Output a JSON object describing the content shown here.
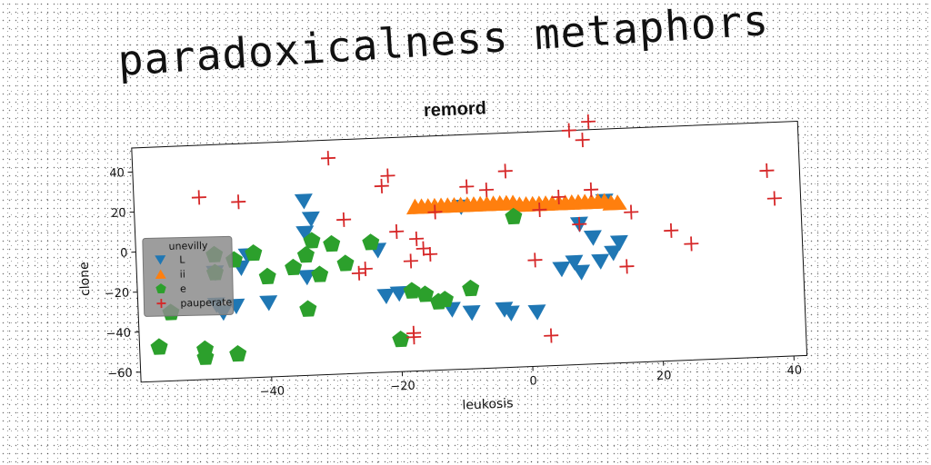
{
  "super_title": "paradoxicalness metaphors",
  "chart_data": {
    "type": "scatter",
    "title": "remord",
    "xlabel": "leukosis",
    "ylabel": "clone",
    "xlim": [
      -60,
      42
    ],
    "ylim": [
      -65,
      52
    ],
    "xticks": [
      -40,
      -20,
      0,
      20,
      40
    ],
    "yticks": [
      -60,
      -40,
      -20,
      0,
      20,
      40
    ],
    "grid": false,
    "legend": {
      "title": "unevilly",
      "placement": "center-left"
    },
    "series": [
      {
        "name": "L",
        "marker": "triangle-down",
        "color": "#1f77b4",
        "points": [
          [
            -34,
            22
          ],
          [
            -33,
            13
          ],
          [
            -34,
            6
          ],
          [
            -43,
            -4
          ],
          [
            -44,
            -10
          ],
          [
            -48,
            -12
          ],
          [
            -48,
            -28
          ],
          [
            -45,
            -29
          ],
          [
            -47,
            -32
          ],
          [
            -40,
            -28
          ],
          [
            -34,
            -16
          ],
          [
            -23,
            -4
          ],
          [
            -22,
            -27
          ],
          [
            -20,
            -26
          ],
          [
            -12,
            -35
          ],
          [
            -9,
            -37
          ],
          [
            -4,
            -36
          ],
          [
            -3,
            -38
          ],
          [
            -10,
            16
          ],
          [
            1,
            -38
          ],
          [
            5,
            -17
          ],
          [
            7,
            -14
          ],
          [
            8,
            -19
          ],
          [
            11,
            -14
          ],
          [
            13,
            -10
          ],
          [
            14,
            -5
          ],
          [
            10,
            -2
          ],
          [
            8,
            5
          ],
          [
            12,
            16
          ]
        ]
      },
      {
        "name": "ii",
        "marker": "triangle-up",
        "color": "#ff7f0e",
        "points": [
          [
            -17,
            17
          ],
          [
            -16,
            17
          ],
          [
            -15,
            17
          ],
          [
            -14,
            17
          ],
          [
            -13,
            17
          ],
          [
            -12,
            17
          ],
          [
            -11,
            17
          ],
          [
            -10,
            17
          ],
          [
            -9,
            17
          ],
          [
            -8,
            17
          ],
          [
            -7,
            17
          ],
          [
            -6,
            17
          ],
          [
            -5,
            17
          ],
          [
            -4,
            17
          ],
          [
            -3,
            17
          ],
          [
            -2,
            17
          ],
          [
            -1,
            16
          ],
          [
            0,
            16
          ],
          [
            1,
            16
          ],
          [
            2,
            16
          ],
          [
            3,
            16
          ],
          [
            4,
            16
          ],
          [
            5,
            16
          ],
          [
            6,
            16
          ],
          [
            7,
            16
          ],
          [
            8,
            16
          ],
          [
            9,
            16
          ],
          [
            10,
            16
          ],
          [
            11,
            16
          ],
          [
            12,
            16
          ],
          [
            13,
            15
          ],
          [
            14,
            15
          ]
        ]
      },
      {
        "name": "e",
        "marker": "pentagon",
        "color": "#2ca02c",
        "points": [
          [
            -48,
            -3
          ],
          [
            -45,
            -6
          ],
          [
            -48,
            -12
          ],
          [
            -42,
            -3
          ],
          [
            -40,
            -15
          ],
          [
            -36,
            -11
          ],
          [
            -34,
            -5
          ],
          [
            -33,
            2
          ],
          [
            -30,
            0
          ],
          [
            -32,
            -15
          ],
          [
            -28,
            -10
          ],
          [
            -24,
            0
          ],
          [
            -34,
            -32
          ],
          [
            -55,
            -31
          ],
          [
            -57,
            -48
          ],
          [
            -50,
            -50
          ],
          [
            -50,
            -54
          ],
          [
            -45,
            -53
          ],
          [
            -20,
            -49
          ],
          [
            -18,
            -25
          ],
          [
            -16,
            -27
          ],
          [
            -14,
            -31
          ],
          [
            -13,
            -30
          ],
          [
            -9,
            -25
          ],
          [
            -2,
            10
          ]
        ]
      },
      {
        "name": "pauperate",
        "marker": "plus",
        "color": "#d62728",
        "points": [
          [
            -50,
            26
          ],
          [
            -44,
            23
          ],
          [
            -30,
            43
          ],
          [
            -28,
            12
          ],
          [
            -26,
            -15
          ],
          [
            -25,
            -13
          ],
          [
            -22,
            28
          ],
          [
            -21,
            33
          ],
          [
            -20,
            5
          ],
          [
            -18,
            -10
          ],
          [
            -17,
            1
          ],
          [
            -16,
            -4
          ],
          [
            -15,
            -7
          ],
          [
            -14,
            14
          ],
          [
            -18,
            -46
          ],
          [
            -18,
            -48
          ],
          [
            -9,
            26
          ],
          [
            -6,
            24
          ],
          [
            -3,
            33
          ],
          [
            2,
            13
          ],
          [
            5,
            19
          ],
          [
            7,
            52
          ],
          [
            9,
            47
          ],
          [
            10,
            56
          ],
          [
            10,
            22
          ],
          [
            8,
            5
          ],
          [
            15,
            -17
          ],
          [
            16,
            10
          ],
          [
            22,
            0
          ],
          [
            25,
            -7
          ],
          [
            37,
            28
          ],
          [
            38,
            14
          ],
          [
            3,
            -50
          ],
          [
            1,
            -12
          ]
        ]
      }
    ]
  }
}
